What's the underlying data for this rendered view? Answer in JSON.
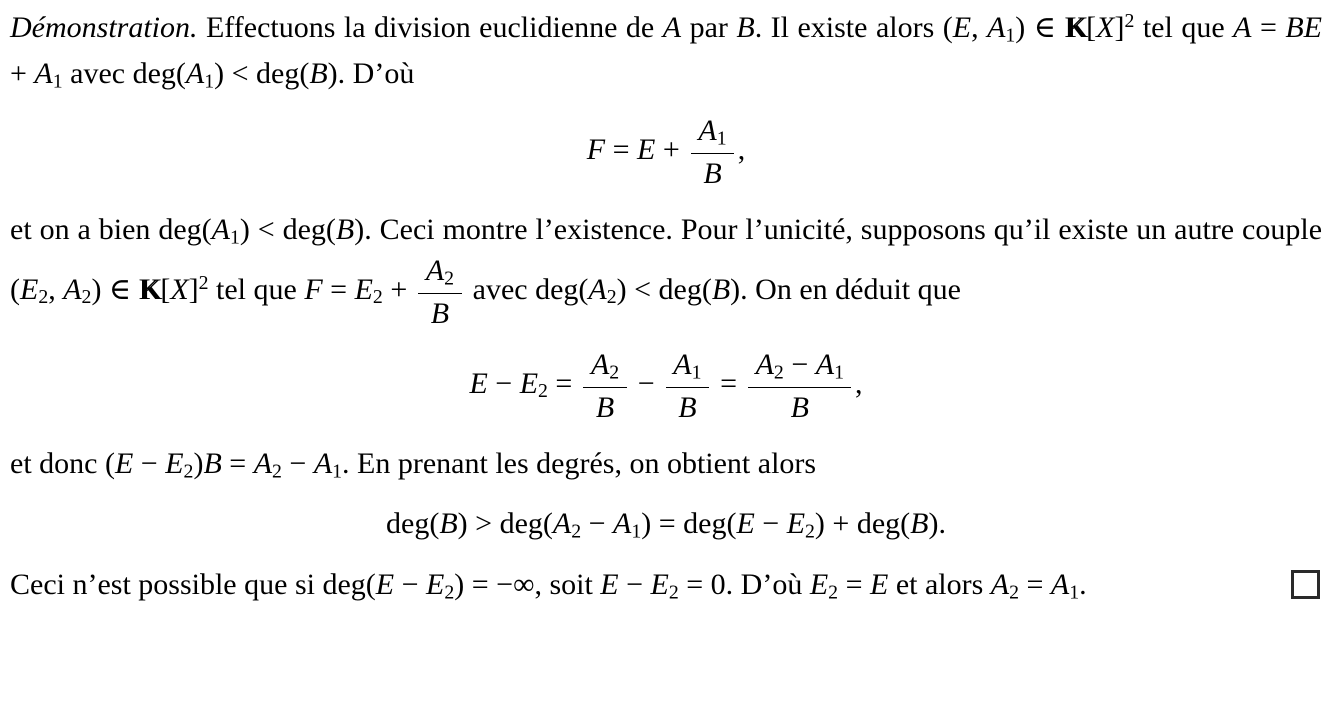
{
  "document": {
    "language": "fr",
    "kind": "latex-proof",
    "background": "#ffffff",
    "text_color": "#000000",
    "qed_symbol": "open-square",
    "blocks": [
      {
        "type": "paragraph",
        "name": "para-intro",
        "runs": [
          {
            "t": "Démonstration.",
            "i": true
          },
          {
            "t": "  Effectuons la division euclidienne de "
          },
          {
            "t": "A",
            "i": true
          },
          {
            "t": " par "
          },
          {
            "t": "B",
            "i": true
          },
          {
            "t": ". Il existe alors ("
          },
          {
            "t": "E",
            "i": true
          },
          {
            "t": ", "
          },
          {
            "t": "A",
            "i": true
          },
          {
            "t": "1",
            "sub": true
          },
          {
            "t": ") ∈ "
          },
          {
            "t": "K",
            "bb": true
          },
          {
            "t": "["
          },
          {
            "t": "X",
            "i": true
          },
          {
            "t": "]"
          },
          {
            "t": "2",
            "sup": true
          },
          {
            "t": " tel que "
          },
          {
            "t": "A",
            "i": true
          },
          {
            "t": " = "
          },
          {
            "t": "BE",
            "i": true
          },
          {
            "t": " + "
          },
          {
            "t": "A",
            "i": true
          },
          {
            "t": "1",
            "sub": true
          },
          {
            "t": " avec deg("
          },
          {
            "t": "A",
            "i": true
          },
          {
            "t": "1",
            "sub": true
          },
          {
            "t": ") < deg("
          },
          {
            "t": "B",
            "i": true
          },
          {
            "t": "). D’où"
          }
        ]
      },
      {
        "type": "equation",
        "name": "eq-f-definition",
        "runs": [
          {
            "t": "F",
            "i": true
          },
          {
            "t": " = "
          },
          {
            "t": "E",
            "i": true
          },
          {
            "t": " + "
          },
          {
            "frac": {
              "num": [
                {
                  "t": "A",
                  "i": true
                },
                {
                  "t": "1",
                  "sub": true
                }
              ],
              "den": [
                {
                  "t": "B",
                  "i": true
                }
              ]
            }
          },
          {
            "t": ","
          }
        ]
      },
      {
        "type": "paragraph",
        "name": "para-existence-unicite",
        "runs": [
          {
            "t": "et on a bien deg("
          },
          {
            "t": "A",
            "i": true
          },
          {
            "t": "1",
            "sub": true
          },
          {
            "t": ") < deg("
          },
          {
            "t": "B",
            "i": true
          },
          {
            "t": "). Ceci montre l’existence. Pour l’unicité, supposons qu’il existe un autre couple ("
          },
          {
            "t": "E",
            "i": true
          },
          {
            "t": "2",
            "sub": true
          },
          {
            "t": ", "
          },
          {
            "t": "A",
            "i": true
          },
          {
            "t": "2",
            "sub": true
          },
          {
            "t": ") ∈ "
          },
          {
            "t": "K",
            "bb": true
          },
          {
            "t": "["
          },
          {
            "t": "X",
            "i": true
          },
          {
            "t": "]"
          },
          {
            "t": "2",
            "sup": true
          },
          {
            "t": " tel que "
          },
          {
            "t": "F",
            "i": true
          },
          {
            "t": " = "
          },
          {
            "t": "E",
            "i": true
          },
          {
            "t": "2",
            "sub": true
          },
          {
            "t": " + "
          },
          {
            "frac": {
              "num": [
                {
                  "t": "A",
                  "i": true
                },
                {
                  "t": "2",
                  "sub": true
                }
              ],
              "den": [
                {
                  "t": "B",
                  "i": true
                }
              ]
            }
          },
          {
            "t": " avec deg("
          },
          {
            "t": "A",
            "i": true
          },
          {
            "t": "2",
            "sub": true
          },
          {
            "t": ") < deg("
          },
          {
            "t": "B",
            "i": true
          },
          {
            "t": "). On en déduit que"
          }
        ]
      },
      {
        "type": "equation",
        "name": "eq-difference",
        "runs": [
          {
            "t": "E",
            "i": true
          },
          {
            "t": " − "
          },
          {
            "t": "E",
            "i": true
          },
          {
            "t": "2",
            "sub": true
          },
          {
            "t": " = "
          },
          {
            "frac": {
              "num": [
                {
                  "t": "A",
                  "i": true
                },
                {
                  "t": "2",
                  "sub": true
                }
              ],
              "den": [
                {
                  "t": "B",
                  "i": true
                }
              ]
            }
          },
          {
            "t": " − "
          },
          {
            "frac": {
              "num": [
                {
                  "t": "A",
                  "i": true
                },
                {
                  "t": "1",
                  "sub": true
                }
              ],
              "den": [
                {
                  "t": "B",
                  "i": true
                }
              ]
            }
          },
          {
            "t": " = "
          },
          {
            "frac": {
              "num": [
                {
                  "t": "A",
                  "i": true
                },
                {
                  "t": "2",
                  "sub": true
                },
                {
                  "t": " − "
                },
                {
                  "t": "A",
                  "i": true
                },
                {
                  "t": "1",
                  "sub": true
                }
              ],
              "den": [
                {
                  "t": "B",
                  "i": true
                }
              ]
            }
          },
          {
            "t": ","
          }
        ]
      },
      {
        "type": "paragraph",
        "name": "para-degres",
        "runs": [
          {
            "t": "et donc ("
          },
          {
            "t": "E",
            "i": true
          },
          {
            "t": " − "
          },
          {
            "t": "E",
            "i": true
          },
          {
            "t": "2",
            "sub": true
          },
          {
            "t": ")"
          },
          {
            "t": "B",
            "i": true
          },
          {
            "t": " = "
          },
          {
            "t": "A",
            "i": true
          },
          {
            "t": "2",
            "sub": true
          },
          {
            "t": " − "
          },
          {
            "t": "A",
            "i": true
          },
          {
            "t": "1",
            "sub": true
          },
          {
            "t": ". En prenant les degrés, on obtient alors"
          }
        ]
      },
      {
        "type": "equation",
        "name": "eq-degree-inequality",
        "runs": [
          {
            "t": "deg("
          },
          {
            "t": "B",
            "i": true
          },
          {
            "t": ") > deg("
          },
          {
            "t": "A",
            "i": true
          },
          {
            "t": "2",
            "sub": true
          },
          {
            "t": " − "
          },
          {
            "t": "A",
            "i": true
          },
          {
            "t": "1",
            "sub": true
          },
          {
            "t": ") = deg("
          },
          {
            "t": "E",
            "i": true
          },
          {
            "t": " − "
          },
          {
            "t": "E",
            "i": true
          },
          {
            "t": "2",
            "sub": true
          },
          {
            "t": ") + deg("
          },
          {
            "t": "B",
            "i": true
          },
          {
            "t": ")."
          }
        ]
      },
      {
        "type": "paragraph",
        "name": "para-conclusion",
        "qed": true,
        "runs": [
          {
            "t": "Ceci n’est possible que si deg("
          },
          {
            "t": "E",
            "i": true
          },
          {
            "t": " − "
          },
          {
            "t": "E",
            "i": true
          },
          {
            "t": "2",
            "sub": true
          },
          {
            "t": ") = −∞, soit "
          },
          {
            "t": "E",
            "i": true
          },
          {
            "t": " − "
          },
          {
            "t": "E",
            "i": true
          },
          {
            "t": "2",
            "sub": true
          },
          {
            "t": " = 0. D’où "
          },
          {
            "t": "E",
            "i": true
          },
          {
            "t": "2",
            "sub": true
          },
          {
            "t": " = "
          },
          {
            "t": "E",
            "i": true
          },
          {
            "t": " et alors "
          },
          {
            "t": "A",
            "i": true
          },
          {
            "t": "2",
            "sub": true
          },
          {
            "t": " = "
          },
          {
            "t": "A",
            "i": true
          },
          {
            "t": "1",
            "sub": true
          },
          {
            "t": "."
          }
        ]
      }
    ]
  }
}
